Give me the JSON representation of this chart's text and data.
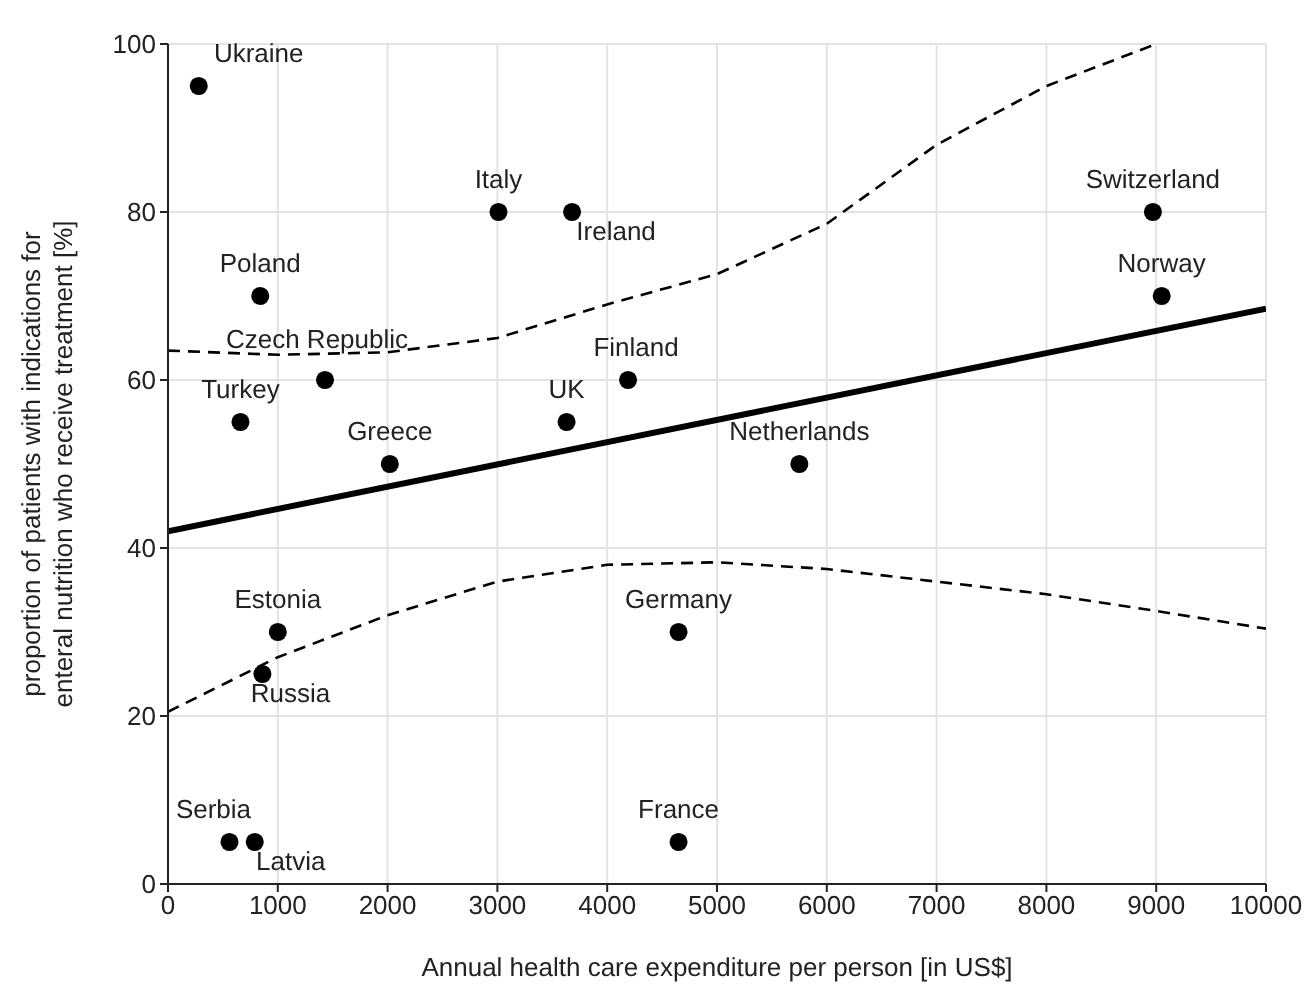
{
  "chart_data": {
    "type": "scatter",
    "xlabel": "Annual health care expenditure per person [in US$]",
    "ylabel": "proportion of patients with indications for enteral nutrition who receive treatment [%]",
    "xlim": [
      0,
      10000
    ],
    "xticks": [
      0,
      1000,
      2000,
      3000,
      4000,
      5000,
      6000,
      7000,
      8000,
      9000,
      10000
    ],
    "ylim": [
      0,
      100
    ],
    "yticks": [
      0,
      20,
      40,
      60,
      80,
      100
    ],
    "grid": true,
    "series": [
      {
        "color": "#000000",
        "marker": "circle",
        "x": [
          280,
          3010,
          3680,
          840,
          1430,
          660,
          2020,
          3630,
          4190,
          8970,
          9050,
          5750,
          1000,
          860,
          4650,
          560,
          790,
          4650
        ],
        "values": [
          95,
          80,
          80,
          70,
          60,
          55,
          50,
          55,
          60,
          80,
          70,
          50,
          30,
          25,
          30,
          5,
          5,
          5
        ]
      },
      {
        "type": "line",
        "color": "#000000",
        "line_style": "solid",
        "marker": "none",
        "x": [
          0,
          10000
        ],
        "values": [
          42,
          68.5
        ]
      },
      {
        "type": "line",
        "color": "#000000",
        "line_style": "dashed",
        "marker": "none",
        "x": [
          0,
          1000,
          2000,
          3000,
          4000,
          5000,
          6000,
          7000,
          8000,
          9000
        ],
        "values": [
          63.5,
          63,
          63.3,
          65,
          69,
          72.6,
          78.6,
          88,
          95,
          100
        ]
      },
      {
        "type": "line",
        "color": "#000000",
        "line_style": "dashed",
        "marker": "none",
        "x": [
          0,
          1000,
          2000,
          3000,
          4000,
          5000,
          6000,
          7000,
          8000,
          9000,
          10000
        ],
        "values": [
          20.5,
          27,
          32,
          36,
          38,
          38.3,
          37.5,
          36,
          34.5,
          32.5,
          30.4
        ]
      }
    ],
    "annotations": [
      {
        "text": "Ukraine",
        "x": 280,
        "y": 95
      },
      {
        "text": "Italy",
        "x": 3010,
        "y": 80
      },
      {
        "text": "Ireland",
        "x": 3680,
        "y": 80
      },
      {
        "text": "Poland",
        "x": 840,
        "y": 70
      },
      {
        "text": "Czech Republic",
        "x": 1430,
        "y": 60
      },
      {
        "text": "Turkey",
        "x": 660,
        "y": 55
      },
      {
        "text": "Greece",
        "x": 2020,
        "y": 50
      },
      {
        "text": "UK",
        "x": 3630,
        "y": 55
      },
      {
        "text": "Finland",
        "x": 4190,
        "y": 60
      },
      {
        "text": "Switzerland",
        "x": 8970,
        "y": 80
      },
      {
        "text": "Norway",
        "x": 9050,
        "y": 70
      },
      {
        "text": "Netherlands",
        "x": 5750,
        "y": 50
      },
      {
        "text": "Estonia",
        "x": 1000,
        "y": 30
      },
      {
        "text": "Russia",
        "x": 860,
        "y": 25
      },
      {
        "text": "Germany",
        "x": 4650,
        "y": 30
      },
      {
        "text": "Serbia",
        "x": 560,
        "y": 5
      },
      {
        "text": "Latvia",
        "x": 790,
        "y": 5
      },
      {
        "text": "France",
        "x": 4650,
        "y": 5
      }
    ]
  }
}
